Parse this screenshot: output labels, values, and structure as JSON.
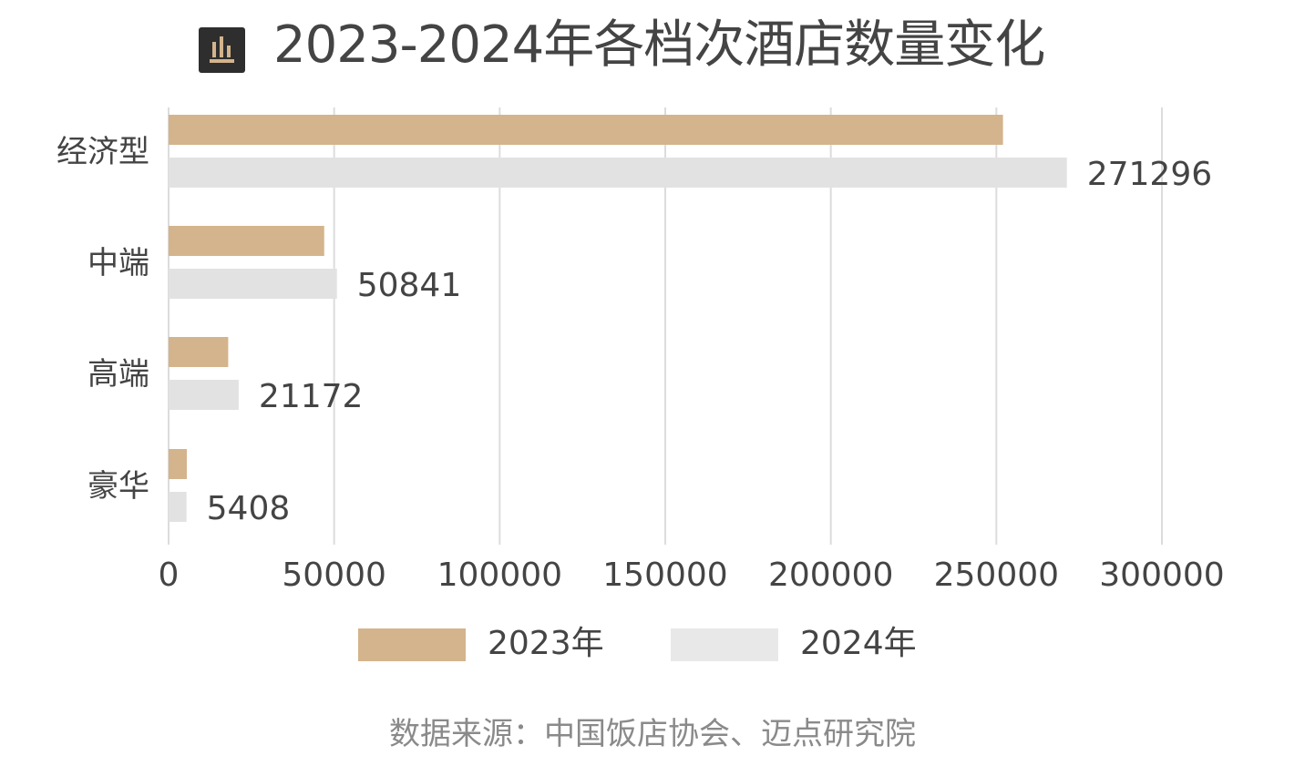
{
  "title": "2023-2024年各档次酒店数量变化",
  "icon": "bar-chart-icon",
  "colors": {
    "series_2023": "#d4b48c",
    "series_2024": "#e2e2e2",
    "grid": "#dcdcdc",
    "text": "#444444",
    "source": "#8a8a8a"
  },
  "source": "数据来源：中国饭店协会、迈点研究院",
  "chart_data": {
    "type": "bar",
    "orientation": "horizontal",
    "title": "2023-2024年各档次酒店数量变化",
    "categories": [
      "经济型",
      "中端",
      "高端",
      "豪华"
    ],
    "series": [
      {
        "name": "2023年",
        "values": [
          252000,
          47000,
          18000,
          5500
        ],
        "show_labels": false
      },
      {
        "name": "2024年",
        "values": [
          271296,
          50841,
          21172,
          5408
        ],
        "show_labels": true
      }
    ],
    "xlim": [
      0,
      300000
    ],
    "xticks": [
      "0",
      "50000",
      "100000",
      "150000",
      "200000",
      "250000",
      "300000"
    ],
    "grid": "vertical",
    "legend": "bottom"
  }
}
